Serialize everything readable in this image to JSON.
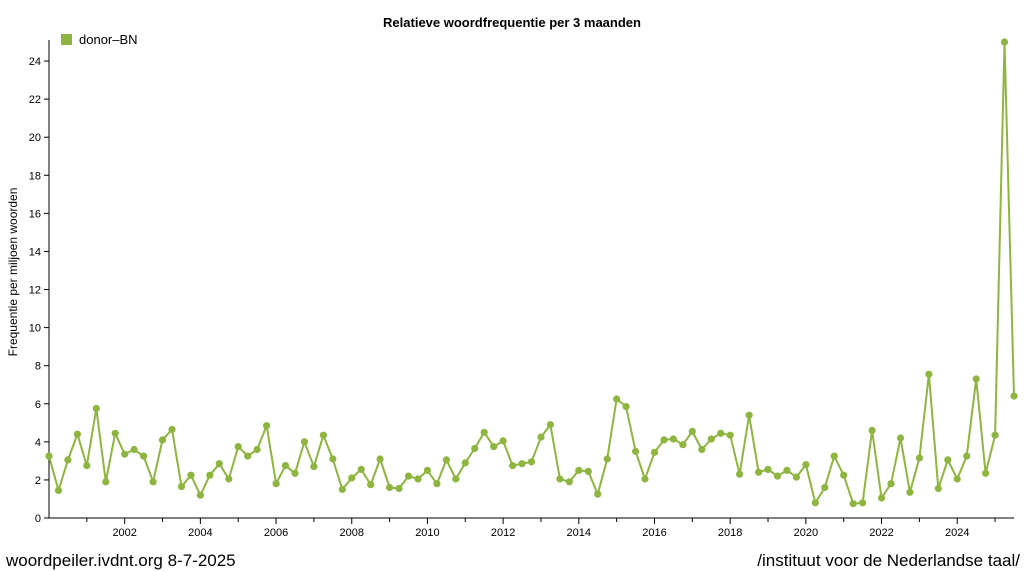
{
  "footer": {
    "left": "woordpeiler.ivdnt.org 8-7-2025",
    "right": "/instituut voor de Nederlandse taal/"
  },
  "colors": {
    "series": "#8db53f",
    "axis": "#000000"
  },
  "chart_data": {
    "type": "line",
    "title": "Relatieve woordfrequentie per 3 maanden",
    "xlabel": "",
    "ylabel": "Frequentie per miljoen woorden",
    "xlim": [
      2000.0,
      2025.5
    ],
    "ylim": [
      0,
      25
    ],
    "x_ticks": [
      2002,
      2004,
      2006,
      2008,
      2010,
      2012,
      2014,
      2016,
      2018,
      2020,
      2022,
      2024
    ],
    "y_ticks": [
      0,
      2,
      4,
      6,
      8,
      10,
      12,
      14,
      16,
      18,
      20,
      22,
      24
    ],
    "grid": false,
    "legend": "top-left",
    "series": [
      {
        "name": "donor–BN",
        "color": "#8db53f",
        "x": [
          2000.0,
          2000.25,
          2000.5,
          2000.75,
          2001.0,
          2001.25,
          2001.5,
          2001.75,
          2002.0,
          2002.25,
          2002.5,
          2002.75,
          2003.0,
          2003.25,
          2003.5,
          2003.75,
          2004.0,
          2004.25,
          2004.5,
          2004.75,
          2005.0,
          2005.25,
          2005.5,
          2005.75,
          2006.0,
          2006.25,
          2006.5,
          2006.75,
          2007.0,
          2007.25,
          2007.5,
          2007.75,
          2008.0,
          2008.25,
          2008.5,
          2008.75,
          2009.0,
          2009.25,
          2009.5,
          2009.75,
          2010.0,
          2010.25,
          2010.5,
          2010.75,
          2011.0,
          2011.25,
          2011.5,
          2011.75,
          2012.0,
          2012.25,
          2012.5,
          2012.75,
          2013.0,
          2013.25,
          2013.5,
          2013.75,
          2014.0,
          2014.25,
          2014.5,
          2014.75,
          2015.0,
          2015.25,
          2015.5,
          2015.75,
          2016.0,
          2016.25,
          2016.5,
          2016.75,
          2017.0,
          2017.25,
          2017.5,
          2017.75,
          2018.0,
          2018.25,
          2018.5,
          2018.75,
          2019.0,
          2019.25,
          2019.5,
          2019.75,
          2020.0,
          2020.25,
          2020.5,
          2020.75,
          2021.0,
          2021.25,
          2021.5,
          2021.75,
          2022.0,
          2022.25,
          2022.5,
          2022.75,
          2023.0,
          2023.25,
          2023.5,
          2023.75,
          2024.0,
          2024.25,
          2024.5,
          2024.75,
          2025.0,
          2025.25,
          2025.5
        ],
        "values": [
          3.25,
          1.45,
          3.05,
          4.4,
          2.75,
          5.75,
          1.9,
          4.45,
          3.35,
          3.6,
          3.25,
          1.9,
          4.1,
          4.65,
          1.65,
          2.25,
          1.2,
          2.25,
          2.85,
          2.05,
          3.75,
          3.25,
          3.6,
          4.85,
          1.8,
          2.75,
          2.35,
          4.0,
          2.7,
          4.35,
          3.1,
          1.5,
          2.1,
          2.55,
          1.75,
          3.1,
          1.6,
          1.55,
          2.2,
          2.05,
          2.5,
          1.8,
          3.05,
          2.05,
          2.9,
          3.65,
          4.5,
          3.75,
          4.05,
          2.75,
          2.85,
          2.95,
          4.25,
          4.9,
          2.05,
          1.9,
          2.5,
          2.45,
          1.25,
          3.1,
          6.25,
          5.85,
          3.5,
          2.05,
          3.45,
          4.1,
          4.15,
          3.85,
          4.55,
          3.6,
          4.15,
          4.45,
          4.35,
          2.3,
          5.4,
          2.4,
          2.55,
          2.2,
          2.5,
          2.15,
          2.8,
          0.8,
          1.6,
          3.25,
          2.25,
          0.75,
          0.8,
          4.6,
          1.05,
          1.8,
          4.2,
          1.35,
          3.15,
          7.55,
          1.55,
          3.05,
          2.05,
          3.25,
          7.3,
          2.35,
          4.35,
          25.0,
          6.4
        ]
      }
    ]
  }
}
